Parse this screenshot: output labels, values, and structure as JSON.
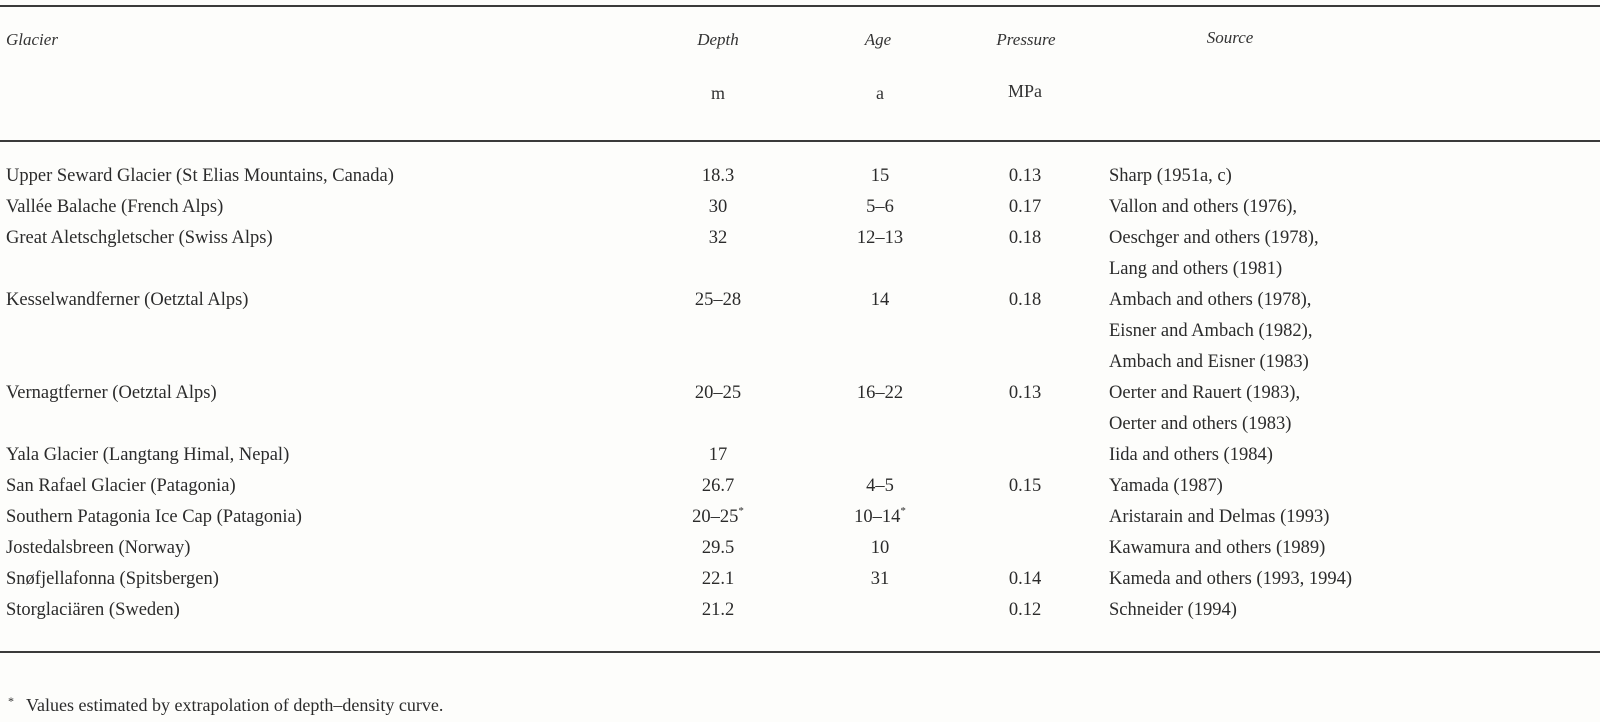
{
  "table": {
    "headers": {
      "glacier": "Glacier",
      "depth": "Depth",
      "age": "Age",
      "pressure": "Pressure",
      "source": "Source"
    },
    "units": {
      "depth": "m",
      "age": "a",
      "pressure": "MPa"
    },
    "rows": [
      {
        "glacier": "Upper Seward Glacier (St Elias Mountains, Canada)",
        "depth": "18.3",
        "depth_note": "",
        "age": "15",
        "age_note": "",
        "pressure": "0.13",
        "source": [
          "Sharp (1951a, c)"
        ]
      },
      {
        "glacier": "Vallée Balache (French Alps)",
        "depth": "30",
        "depth_note": "",
        "age": "5–6",
        "age_note": "",
        "pressure": "0.17",
        "source": [
          "Vallon and others (1976),"
        ]
      },
      {
        "glacier": "Great Aletschgletscher (Swiss Alps)",
        "depth": "32",
        "depth_note": "",
        "age": "12–13",
        "age_note": "",
        "pressure": "0.18",
        "source": [
          "Oeschger and others (1978),",
          "Lang and others (1981)"
        ]
      },
      {
        "glacier": "Kesselwandferner (Oetztal Alps)",
        "depth": "25–28",
        "depth_note": "",
        "age": "14",
        "age_note": "",
        "pressure": "0.18",
        "source": [
          "Ambach and others (1978),",
          "Eisner and Ambach (1982),",
          "Ambach and Eisner (1983)"
        ]
      },
      {
        "glacier": "Vernagtferner (Oetztal Alps)",
        "depth": "20–25",
        "depth_note": "",
        "age": "16–22",
        "age_note": "",
        "pressure": "0.13",
        "source": [
          "Oerter and Rauert (1983),",
          "Oerter and others (1983)"
        ]
      },
      {
        "glacier": "Yala Glacier (Langtang Himal, Nepal)",
        "depth": "17",
        "depth_note": "",
        "age": "",
        "age_note": "",
        "pressure": "",
        "source": [
          "Iida and others (1984)"
        ]
      },
      {
        "glacier": "San Rafael Glacier (Patagonia)",
        "depth": "26.7",
        "depth_note": "",
        "age": "4–5",
        "age_note": "",
        "pressure": "0.15",
        "source": [
          "Yamada  (1987)"
        ]
      },
      {
        "glacier": "Southern Patagonia Ice Cap (Patagonia)",
        "depth": "20–25",
        "depth_note": "*",
        "age": "10–14",
        "age_note": "*",
        "pressure": "",
        "source": [
          "Aristarain and Delmas (1993)"
        ]
      },
      {
        "glacier": "Jostedalsbreen (Norway)",
        "depth": "29.5",
        "depth_note": "",
        "age": "10",
        "age_note": "",
        "pressure": "",
        "source": [
          "Kawamura and others (1989)"
        ]
      },
      {
        "glacier": "Snøfjellafonna (Spitsbergen)",
        "depth": "22.1",
        "depth_note": "",
        "age": "31",
        "age_note": "",
        "pressure": "0.14",
        "source": [
          "Kameda and others (1993, 1994)"
        ]
      },
      {
        "glacier": "Storglaciären (Sweden)",
        "depth": "21.2",
        "depth_note": "",
        "age": "",
        "age_note": "",
        "pressure": "0.12",
        "source": [
          "Schneider (1994)"
        ]
      }
    ]
  },
  "footnote": {
    "marker": "*",
    "text": "Values estimated by extrapolation of depth–density curve."
  }
}
